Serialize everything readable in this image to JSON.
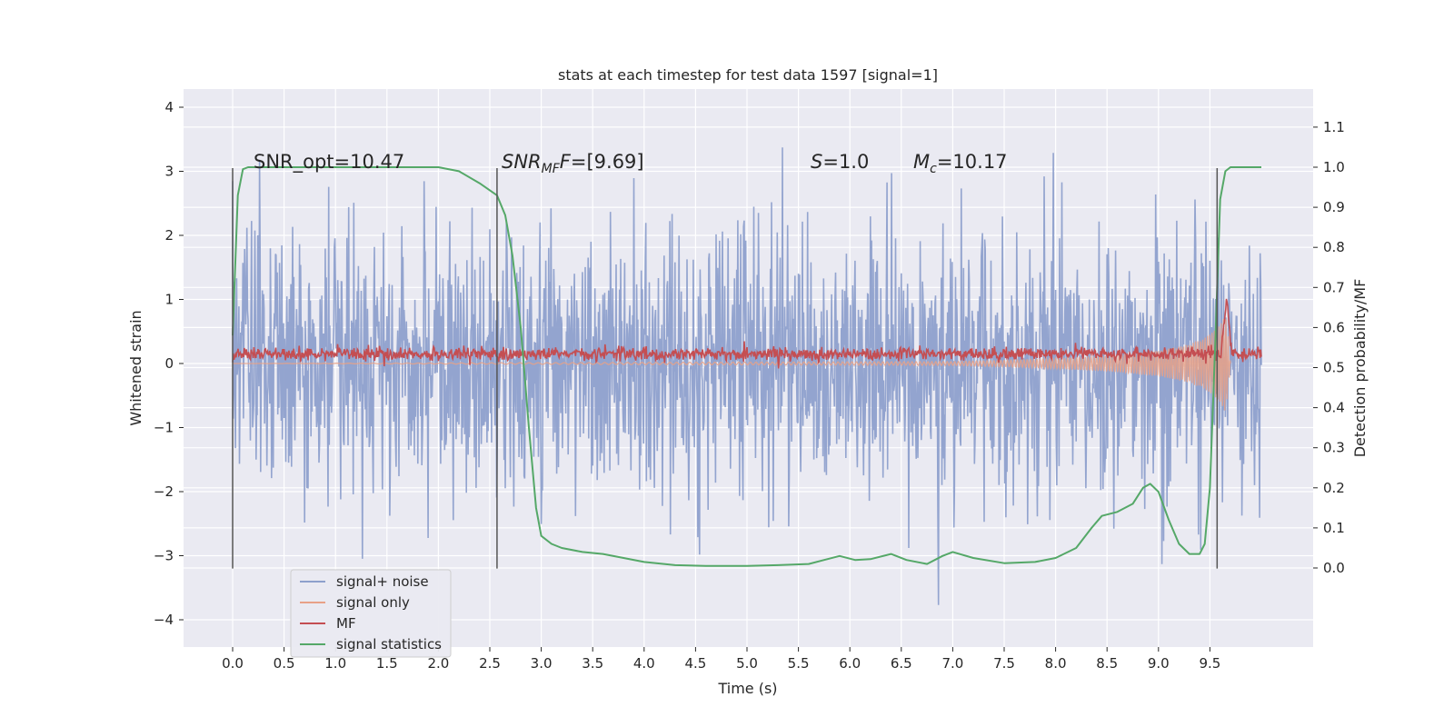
{
  "chart_data": {
    "type": "line",
    "title": "stats at each timestep for test data 1597 [signal=1]",
    "xlabel": "Time (s)",
    "ylabel_left": "Whitened strain",
    "ylabel_right": "Detection probability/MF",
    "xlim": [
      -0.5,
      10.5
    ],
    "ylim_left": [
      -4.4,
      4.3
    ],
    "ylim_right": [
      -0.2,
      1.2
    ],
    "x_ticks": [
      "0.0",
      "0.5",
      "1.0",
      "1.5",
      "2.0",
      "2.5",
      "3.0",
      "3.5",
      "4.0",
      "4.5",
      "5.0",
      "5.5",
      "6.0",
      "6.5",
      "7.0",
      "7.5",
      "8.0",
      "8.5",
      "9.0",
      "9.5"
    ],
    "y_left_ticks": [
      "−4",
      "−3",
      "−2",
      "−1",
      "0",
      "1",
      "2",
      "3",
      "4"
    ],
    "y_right_ticks": [
      "0.0",
      "0.1",
      "0.2",
      "0.3",
      "0.4",
      "0.5",
      "0.6",
      "0.7",
      "0.8",
      "0.9",
      "1.0",
      "1.1"
    ],
    "grid": true,
    "legend_position": "lower-left",
    "annotations": {
      "snr_opt": "SNR_opt=10.47",
      "snr_mf_main": "SNR",
      "snr_mf_sub": "MF",
      "snr_mf_rest": "=[9.69]",
      "s_main": "S",
      "s_rest": "=1.0",
      "mc_main": "M",
      "mc_sub": "c",
      "mc_rest": "=10.17"
    },
    "vertical_markers": [
      0.0,
      2.57,
      9.57
    ],
    "series": [
      {
        "name": "signal+ noise",
        "color": "#8ea0cc",
        "description_envelope": "noise-like band, roughly ±1.8 with spikes to about ±3.9",
        "x_range": [
          0.0,
          10.0
        ]
      },
      {
        "name": "signal only",
        "color": "#e8a187",
        "envelope_x": [
          7.0,
          7.5,
          8.0,
          8.5,
          9.0,
          9.3,
          9.5,
          9.6,
          9.65,
          9.68,
          9.7
        ],
        "envelope_amp": [
          0.03,
          0.05,
          0.08,
          0.12,
          0.2,
          0.3,
          0.45,
          0.6,
          0.75,
          0.4,
          0.0
        ]
      },
      {
        "name": "MF",
        "color": "#c44e52",
        "baseline": 0.15,
        "x_range": [
          0.0,
          10.0
        ],
        "peak": {
          "x": 9.66,
          "y": 1.0
        }
      },
      {
        "name": "signal statistics",
        "color": "#55a868",
        "axis": "right",
        "x": [
          0.0,
          0.05,
          0.1,
          0.15,
          0.3,
          0.5,
          1.0,
          1.5,
          1.8,
          2.0,
          2.2,
          2.4,
          2.57,
          2.65,
          2.72,
          2.8,
          2.88,
          2.95,
          3.0,
          3.1,
          3.2,
          3.4,
          3.6,
          3.8,
          4.0,
          4.3,
          4.6,
          5.0,
          5.3,
          5.6,
          5.75,
          5.9,
          6.05,
          6.2,
          6.4,
          6.55,
          6.75,
          6.9,
          7.0,
          7.2,
          7.5,
          7.8,
          8.0,
          8.2,
          8.35,
          8.45,
          8.6,
          8.75,
          8.85,
          8.92,
          9.0,
          9.1,
          9.2,
          9.3,
          9.4,
          9.45,
          9.5,
          9.55,
          9.6,
          9.65,
          9.7,
          9.8,
          10.0
        ],
        "y": [
          0.58,
          0.93,
          0.995,
          1.0,
          1.0,
          1.0,
          1.0,
          1.0,
          1.0,
          1.0,
          0.99,
          0.96,
          0.93,
          0.88,
          0.78,
          0.6,
          0.35,
          0.15,
          0.08,
          0.06,
          0.05,
          0.04,
          0.035,
          0.025,
          0.015,
          0.007,
          0.005,
          0.005,
          0.007,
          0.01,
          0.02,
          0.03,
          0.02,
          0.022,
          0.035,
          0.02,
          0.01,
          0.03,
          0.04,
          0.025,
          0.012,
          0.015,
          0.025,
          0.05,
          0.1,
          0.13,
          0.14,
          0.16,
          0.2,
          0.21,
          0.19,
          0.12,
          0.06,
          0.035,
          0.035,
          0.06,
          0.2,
          0.55,
          0.92,
          0.99,
          1.0,
          1.0,
          1.0
        ]
      }
    ]
  }
}
